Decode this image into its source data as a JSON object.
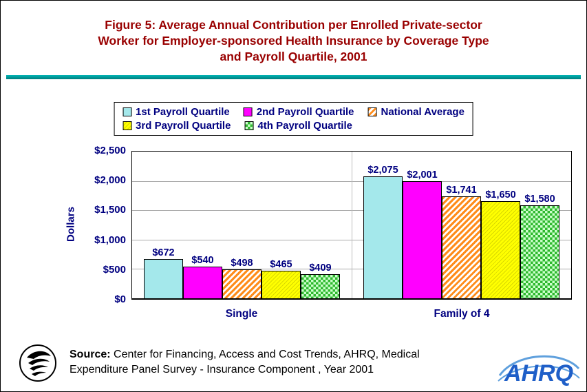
{
  "page": {
    "title_line1": "Figure 5:  Average Annual Contribution per Enrolled Private-sector",
    "title_line2": "Worker for Employer-sponsored Health Insurance by Coverage  Type",
    "title_line3": "and Payroll Quartile, 2001"
  },
  "legend": {
    "items": [
      {
        "label": "1st Payroll Quartile"
      },
      {
        "label": "2nd Payroll Quartile"
      },
      {
        "label": "National Average"
      },
      {
        "label": "3rd Payroll Quartile"
      },
      {
        "label": "4th Payroll Quartile"
      }
    ]
  },
  "axis": {
    "ylabel": "Dollars",
    "ticks": [
      "$2,500",
      "$2,000",
      "$1,500",
      "$1,000",
      "$500",
      "$0"
    ]
  },
  "chart_data": {
    "type": "bar",
    "title": "Figure 5: Average Annual Contribution per Enrolled Private-sector Worker for Employer-sponsored Health Insurance by Coverage Type and Payroll Quartile, 2001",
    "categories": [
      "Single",
      "Family of 4"
    ],
    "series": [
      {
        "name": "1st Payroll Quartile",
        "values": [
          672,
          2075
        ],
        "labels": [
          "$672",
          "$2,075"
        ],
        "color": "#a4e8eb",
        "pattern": "solid"
      },
      {
        "name": "2nd Payroll Quartile",
        "values": [
          540,
          2001
        ],
        "labels": [
          "$540",
          "$2,001"
        ],
        "color": "#ff00ff",
        "pattern": "solid"
      },
      {
        "name": "National Average",
        "values": [
          498,
          1741
        ],
        "labels": [
          "$498",
          "$1,741"
        ],
        "color": "#ff8c1a",
        "pattern": "diagonal-stripes"
      },
      {
        "name": "3rd Payroll Quartile",
        "values": [
          465,
          1650
        ],
        "labels": [
          "$465",
          "$1,650"
        ],
        "color": "#ffff00",
        "pattern": "fine-diagonal"
      },
      {
        "name": "4th Payroll Quartile",
        "values": [
          409,
          1580
        ],
        "labels": [
          "$409",
          "$1,580"
        ],
        "color": "#2eb82e",
        "pattern": "checker"
      }
    ],
    "xlabel": "",
    "ylabel": "Dollars",
    "ylim": [
      0,
      2500
    ],
    "ytick_step": 500,
    "grid": true,
    "legend_position": "top"
  },
  "source": {
    "label": "Source:",
    "line1_rest": " Center for Financing, Access and Cost Trends, AHRQ, Medical",
    "line2": "Expenditure Panel Survey - Insurance Component , Year 2001"
  },
  "footer": {
    "ahrq_logo_text": "AHRQ"
  },
  "colors": {
    "title": "#990000",
    "navy": "#000080",
    "teal_rule": "#009999",
    "gridline": "#a9a9a9",
    "ahrq_blue": "#1f5fc8"
  }
}
